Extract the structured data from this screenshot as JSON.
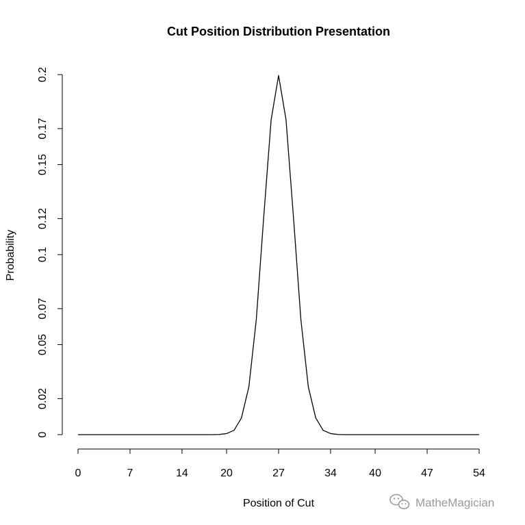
{
  "chart_data": {
    "type": "line",
    "title": "Cut Position Distribution Presentation",
    "xlabel": "Position of Cut",
    "ylabel": "Probability",
    "xlim": [
      0,
      54
    ],
    "ylim": [
      0,
      0.2
    ],
    "x_ticks": [
      0,
      7,
      14,
      20,
      27,
      34,
      40,
      47,
      54
    ],
    "x_tick_labels": [
      "0",
      "7",
      "14",
      "20",
      "27",
      "34",
      "40",
      "47",
      "54"
    ],
    "y_ticks": [
      0,
      0.02,
      0.05,
      0.07,
      0.1,
      0.12,
      0.15,
      0.17,
      0.2
    ],
    "y_tick_labels": [
      "0",
      "0.02",
      "0.05",
      "0.07",
      "0.1",
      "0.12",
      "0.15",
      "0.17",
      "0.2"
    ],
    "grid": false,
    "line_color": "#000000",
    "series": [
      {
        "name": "Probability",
        "x": [
          0,
          1,
          2,
          3,
          4,
          5,
          6,
          7,
          8,
          9,
          10,
          11,
          12,
          13,
          14,
          15,
          16,
          17,
          18,
          19,
          20,
          21,
          22,
          23,
          24,
          25,
          26,
          27,
          28,
          29,
          30,
          31,
          32,
          33,
          34,
          35,
          36,
          37,
          38,
          39,
          40,
          41,
          42,
          43,
          44,
          45,
          46,
          47,
          48,
          49,
          50,
          51,
          52,
          53,
          54
        ],
        "y": [
          0,
          0,
          0,
          0,
          0,
          0,
          0,
          0,
          0,
          0,
          0,
          0,
          0,
          0,
          0,
          0,
          0,
          0,
          0,
          0.0001,
          0.0006,
          0.0024,
          0.0093,
          0.0266,
          0.064,
          0.121,
          0.175,
          0.1995,
          0.175,
          0.121,
          0.064,
          0.0266,
          0.0093,
          0.0024,
          0.0006,
          0.0001,
          0,
          0,
          0,
          0,
          0,
          0,
          0,
          0,
          0,
          0,
          0,
          0,
          0,
          0,
          0,
          0,
          0,
          0,
          0
        ]
      }
    ]
  },
  "watermark": {
    "text": "MatheMagician",
    "icon": "wechat-icon",
    "color": "#9a9a9a"
  }
}
